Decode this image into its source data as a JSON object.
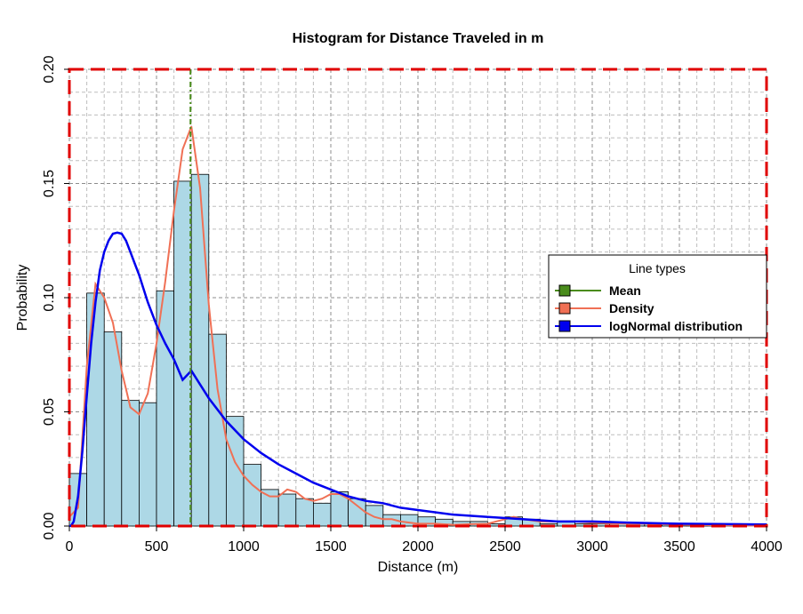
{
  "chart_data": {
    "type": "histogram",
    "title": "Histogram for Distance Traveled in m",
    "xlabel": "Distance (m)",
    "ylabel": "Probability",
    "xlim": [
      0,
      4000
    ],
    "ylim": [
      0,
      0.2
    ],
    "x_ticks": [
      0,
      500,
      1000,
      1500,
      2000,
      2500,
      3000,
      3500,
      4000
    ],
    "y_ticks": [
      0.0,
      0.05,
      0.1,
      0.15,
      0.2
    ],
    "x_tick_labels": [
      "0",
      "500",
      "1000",
      "1500",
      "2000",
      "2500",
      "3000",
      "3500",
      "4000"
    ],
    "y_tick_labels": [
      "0.00",
      "0.05",
      "0.10",
      "0.15",
      "0.20"
    ],
    "grid": true,
    "bin_width": 100,
    "bins": {
      "left_edges": [
        0,
        100,
        200,
        300,
        400,
        500,
        600,
        700,
        800,
        900,
        1000,
        1100,
        1200,
        1300,
        1400,
        1500,
        1600,
        1700,
        1800,
        1900,
        2000,
        2100,
        2200,
        2300,
        2400,
        2500,
        2600,
        2700,
        2800,
        2900,
        3000,
        3100,
        3200,
        3300,
        3400,
        3500,
        3600,
        3700,
        3800,
        3900
      ],
      "probabilities": [
        0.023,
        0.102,
        0.085,
        0.055,
        0.054,
        0.103,
        0.151,
        0.154,
        0.084,
        0.048,
        0.027,
        0.016,
        0.014,
        0.012,
        0.01,
        0.015,
        0.012,
        0.009,
        0.005,
        0.005,
        0.004,
        0.003,
        0.002,
        0.002,
        0.001,
        0.004,
        0.003,
        0.001,
        0.002,
        0.001,
        0.001,
        0.001,
        0.001,
        0.001,
        0.001,
        0.001,
        0.001,
        0.001,
        0.001,
        0.001
      ]
    },
    "fill_color": "#ADD8E6",
    "bar_edge_color": "#000000",
    "mean": 695,
    "mean_color": "#4A8C1C",
    "density": {
      "color": "#F07055",
      "x": [
        0,
        50,
        100,
        150,
        200,
        250,
        300,
        350,
        400,
        450,
        500,
        550,
        600,
        650,
        700,
        750,
        800,
        850,
        900,
        950,
        1000,
        1050,
        1100,
        1150,
        1200,
        1250,
        1300,
        1350,
        1400,
        1450,
        1500,
        1550,
        1600,
        1650,
        1700,
        1750,
        1800,
        1850,
        1900,
        2000,
        2100,
        2200,
        2300,
        2400,
        2500,
        2550,
        2600,
        2700,
        2800,
        2900,
        3000,
        3100,
        3200,
        3300,
        3400,
        3500,
        3600,
        3700,
        3800,
        3900,
        4000
      ],
      "y": [
        0.004,
        0.008,
        0.07,
        0.106,
        0.1,
        0.089,
        0.068,
        0.052,
        0.049,
        0.058,
        0.08,
        0.107,
        0.138,
        0.165,
        0.175,
        0.148,
        0.097,
        0.06,
        0.038,
        0.028,
        0.022,
        0.018,
        0.015,
        0.013,
        0.013,
        0.016,
        0.015,
        0.012,
        0.011,
        0.012,
        0.014,
        0.014,
        0.012,
        0.009,
        0.006,
        0.004,
        0.003,
        0.003,
        0.002,
        0.001,
        0.001,
        0.0005,
        0.0008,
        0.001,
        0.003,
        0.004,
        0.003,
        0.002,
        0.002,
        0.002,
        0.0015,
        0.0012,
        0.001,
        0.001,
        0.0008,
        0.0006,
        0.0005,
        0.0004,
        0.0003,
        0.0002,
        0.0002
      ]
    },
    "lognormal": {
      "color": "#0000EE",
      "x": [
        0,
        10,
        25,
        50,
        75,
        100,
        125,
        150,
        175,
        200,
        225,
        250,
        275,
        300,
        325,
        350,
        375,
        400,
        425,
        450,
        500,
        550,
        600,
        650,
        700,
        750,
        800,
        900,
        1000,
        1100,
        1200,
        1300,
        1400,
        1500,
        1600,
        1700,
        1800,
        1900,
        2000,
        2200,
        2400,
        2600,
        2800,
        3000,
        3200,
        3500,
        3800,
        4000
      ],
      "y": [
        0.0,
        0.0001,
        0.002,
        0.013,
        0.033,
        0.057,
        0.08,
        0.098,
        0.112,
        0.12,
        0.125,
        0.128,
        0.1285,
        0.128,
        0.125,
        0.12,
        0.115,
        0.11,
        0.104,
        0.098,
        0.088,
        0.08,
        0.073,
        0.064,
        0.068,
        0.062,
        0.056,
        0.046,
        0.038,
        0.032,
        0.027,
        0.023,
        0.019,
        0.016,
        0.013,
        0.011,
        0.01,
        0.008,
        0.007,
        0.005,
        0.004,
        0.003,
        0.002,
        0.002,
        0.0015,
        0.001,
        0.0008,
        0.0007
      ]
    },
    "border_color": "#E00000",
    "legend": {
      "title": "Line types",
      "position": "right",
      "items": [
        {
          "label": "Mean",
          "color": "#4A8C1C"
        },
        {
          "label": "Density",
          "color": "#F07055"
        },
        {
          "label": "logNormal distribution",
          "color": "#0000EE"
        }
      ]
    }
  }
}
